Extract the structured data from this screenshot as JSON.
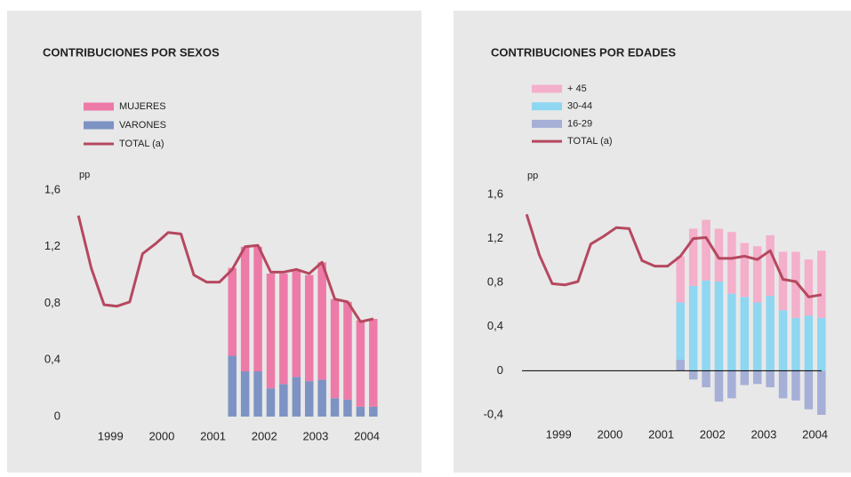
{
  "chart_data": [
    {
      "type": "bar",
      "title": "CONTRIBUCIONES POR SEXOS",
      "ylabel": "pp",
      "x": [
        1998.875,
        1999.125,
        1999.375,
        1999.625,
        1999.875,
        2000.125,
        2000.375,
        2000.625,
        2000.875,
        2001.125,
        2001.375,
        2001.625,
        2001.875,
        2002.125,
        2002.375,
        2002.625,
        2002.875,
        2003.125,
        2003.375,
        2003.625,
        2003.875,
        2004.125,
        2004.375,
        2004.625
      ],
      "xlim": [
        1998.75,
        2004.75
      ],
      "xticks": [
        {
          "value": 1999.5,
          "label": "1999"
        },
        {
          "value": 2000.5,
          "label": "2000"
        },
        {
          "value": 2001.5,
          "label": "2001"
        },
        {
          "value": 2002.5,
          "label": "2002"
        },
        {
          "value": 2003.5,
          "label": "2003"
        },
        {
          "value": 2004.5,
          "label": "2004"
        }
      ],
      "ylim": [
        0,
        1.6
      ],
      "yticks": [
        0,
        {
          "value": 0.4,
          "label": "0,4"
        },
        {
          "value": 0.8,
          "label": "0,8"
        },
        {
          "value": 1.2,
          "label": "1,2"
        },
        {
          "value": 1.6,
          "label": "1,6"
        }
      ],
      "series": [
        {
          "name": "MUJERES",
          "color": "#ee7aa8",
          "values": [
            null,
            null,
            null,
            null,
            null,
            null,
            null,
            null,
            null,
            null,
            null,
            null,
            0.62,
            0.88,
            0.88,
            0.81,
            0.78,
            0.75,
            0.75,
            0.83,
            0.7,
            0.69,
            0.61,
            0.62
          ]
        },
        {
          "name": "VARONES",
          "color": "#7d93c4",
          "values": [
            null,
            null,
            null,
            null,
            null,
            null,
            null,
            null,
            null,
            null,
            null,
            null,
            0.43,
            0.32,
            0.32,
            0.2,
            0.23,
            0.28,
            0.25,
            0.26,
            0.13,
            0.12,
            0.07,
            0.07
          ]
        },
        {
          "name": "TOTAL (a)",
          "type": "line",
          "color": "#b5485f",
          "values": [
            1.42,
            1.05,
            0.79,
            0.78,
            0.81,
            1.15,
            1.22,
            1.3,
            1.29,
            1.0,
            0.95,
            0.95,
            1.04,
            1.2,
            1.21,
            1.02,
            1.02,
            1.04,
            1.01,
            1.09,
            0.83,
            0.81,
            0.67,
            0.69
          ]
        }
      ]
    },
    {
      "type": "bar",
      "title": "CONTRIBUCIONES POR EDADES",
      "ylabel": "pp",
      "x": [
        1998.875,
        1999.125,
        1999.375,
        1999.625,
        1999.875,
        2000.125,
        2000.375,
        2000.625,
        2000.875,
        2001.125,
        2001.375,
        2001.625,
        2001.875,
        2002.125,
        2002.375,
        2002.625,
        2002.875,
        2003.125,
        2003.375,
        2003.625,
        2003.875,
        2004.125,
        2004.375,
        2004.625
      ],
      "xlim": [
        1998.75,
        2004.75
      ],
      "xticks": [
        {
          "value": 1999.5,
          "label": "1999"
        },
        {
          "value": 2000.5,
          "label": "2000"
        },
        {
          "value": 2001.5,
          "label": "2001"
        },
        {
          "value": 2002.5,
          "label": "2002"
        },
        {
          "value": 2003.5,
          "label": "2003"
        },
        {
          "value": 2004.5,
          "label": "2004"
        }
      ],
      "ylim": [
        -0.4,
        1.6
      ],
      "yticks": [
        {
          "value": -0.4,
          "label": "-0,4"
        },
        0,
        {
          "value": 0.4,
          "label": "0,4"
        },
        {
          "value": 0.8,
          "label": "0,8"
        },
        {
          "value": 1.2,
          "label": "1,2"
        },
        {
          "value": 1.6,
          "label": "1,6"
        }
      ],
      "series": [
        {
          "name": "+ 45",
          "color": "#f4afcb",
          "values": [
            null,
            null,
            null,
            null,
            null,
            null,
            null,
            null,
            null,
            null,
            null,
            null,
            0.42,
            0.52,
            0.55,
            0.48,
            0.56,
            0.49,
            0.51,
            0.55,
            0.53,
            0.6,
            0.51,
            0.61
          ]
        },
        {
          "name": "30-44",
          "color": "#8fd6f1",
          "values": [
            null,
            null,
            null,
            null,
            null,
            null,
            null,
            null,
            null,
            null,
            null,
            null,
            0.52,
            0.77,
            0.82,
            0.81,
            0.7,
            0.67,
            0.62,
            0.68,
            0.55,
            0.48,
            0.5,
            0.48
          ]
        },
        {
          "name": "16-29",
          "color": "#a6afd6",
          "values": [
            null,
            null,
            null,
            null,
            null,
            null,
            null,
            null,
            null,
            null,
            null,
            null,
            0.1,
            -0.08,
            -0.15,
            -0.28,
            -0.25,
            -0.13,
            -0.12,
            -0.15,
            -0.25,
            -0.27,
            -0.35,
            -0.4
          ]
        },
        {
          "name": "TOTAL (a)",
          "type": "line",
          "color": "#b5485f",
          "values": [
            1.42,
            1.05,
            0.79,
            0.78,
            0.81,
            1.15,
            1.22,
            1.3,
            1.29,
            1.0,
            0.95,
            0.95,
            1.04,
            1.2,
            1.21,
            1.02,
            1.02,
            1.04,
            1.01,
            1.09,
            0.83,
            0.81,
            0.67,
            0.69
          ]
        }
      ]
    }
  ]
}
